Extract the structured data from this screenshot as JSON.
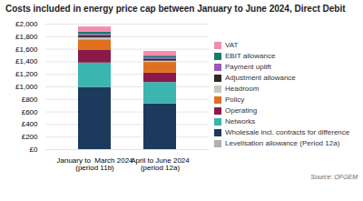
{
  "chart_data": {
    "type": "bar",
    "stacked": true,
    "title": "Costs included in energy price cap between January to June 2024, Direct Debit",
    "categories": [
      "January to  March 2024\n(period 11b)",
      "April to June 2024\n(period 12a)"
    ],
    "series": [
      {
        "name": "Levelisation allowance (Period 12a)",
        "color": "#b0b0b0",
        "values": [
          0,
          0
        ]
      },
      {
        "name": "Wholesale incl. contracts for difference",
        "color": "#1b3a5c",
        "values": [
          990,
          730
        ]
      },
      {
        "name": "Networks",
        "color": "#3ab5b0",
        "values": [
          390,
          340
        ]
      },
      {
        "name": "Operating",
        "color": "#8b1a4a",
        "values": [
          200,
          150
        ]
      },
      {
        "name": "Policy",
        "color": "#e07020",
        "values": [
          170,
          170
        ]
      },
      {
        "name": "Headroom",
        "color": "#c8c8c0",
        "values": [
          30,
          20
        ]
      },
      {
        "name": "Adjustment allowance",
        "color": "#2b2b2b",
        "values": [
          30,
          25
        ]
      },
      {
        "name": "Payment uplift",
        "color": "#9b59b6",
        "values": [
          25,
          20
        ]
      },
      {
        "name": "EBIT allowance",
        "color": "#1a7a6a",
        "values": [
          40,
          35
        ]
      },
      {
        "name": "VAT",
        "color": "#f48cb1",
        "values": [
          80,
          75
        ]
      }
    ],
    "ylim": [
      0,
      2000
    ],
    "yticks": [
      {
        "value": 0,
        "label": "£0"
      },
      {
        "value": 200,
        "label": "£200"
      },
      {
        "value": 400,
        "label": "£400"
      },
      {
        "value": 600,
        "label": "£600"
      },
      {
        "value": 800,
        "label": "£800"
      },
      {
        "value": 1000,
        "label": "£1,000"
      },
      {
        "value": 1200,
        "label": "£1,200"
      },
      {
        "value": 1400,
        "label": "£1,400"
      },
      {
        "value": 1600,
        "label": "£1,600"
      },
      {
        "value": 1800,
        "label": "£1,800"
      },
      {
        "value": 2000,
        "label": "£2,000"
      }
    ],
    "grid": true,
    "legend": "right",
    "source": "Source: OFGEM"
  }
}
